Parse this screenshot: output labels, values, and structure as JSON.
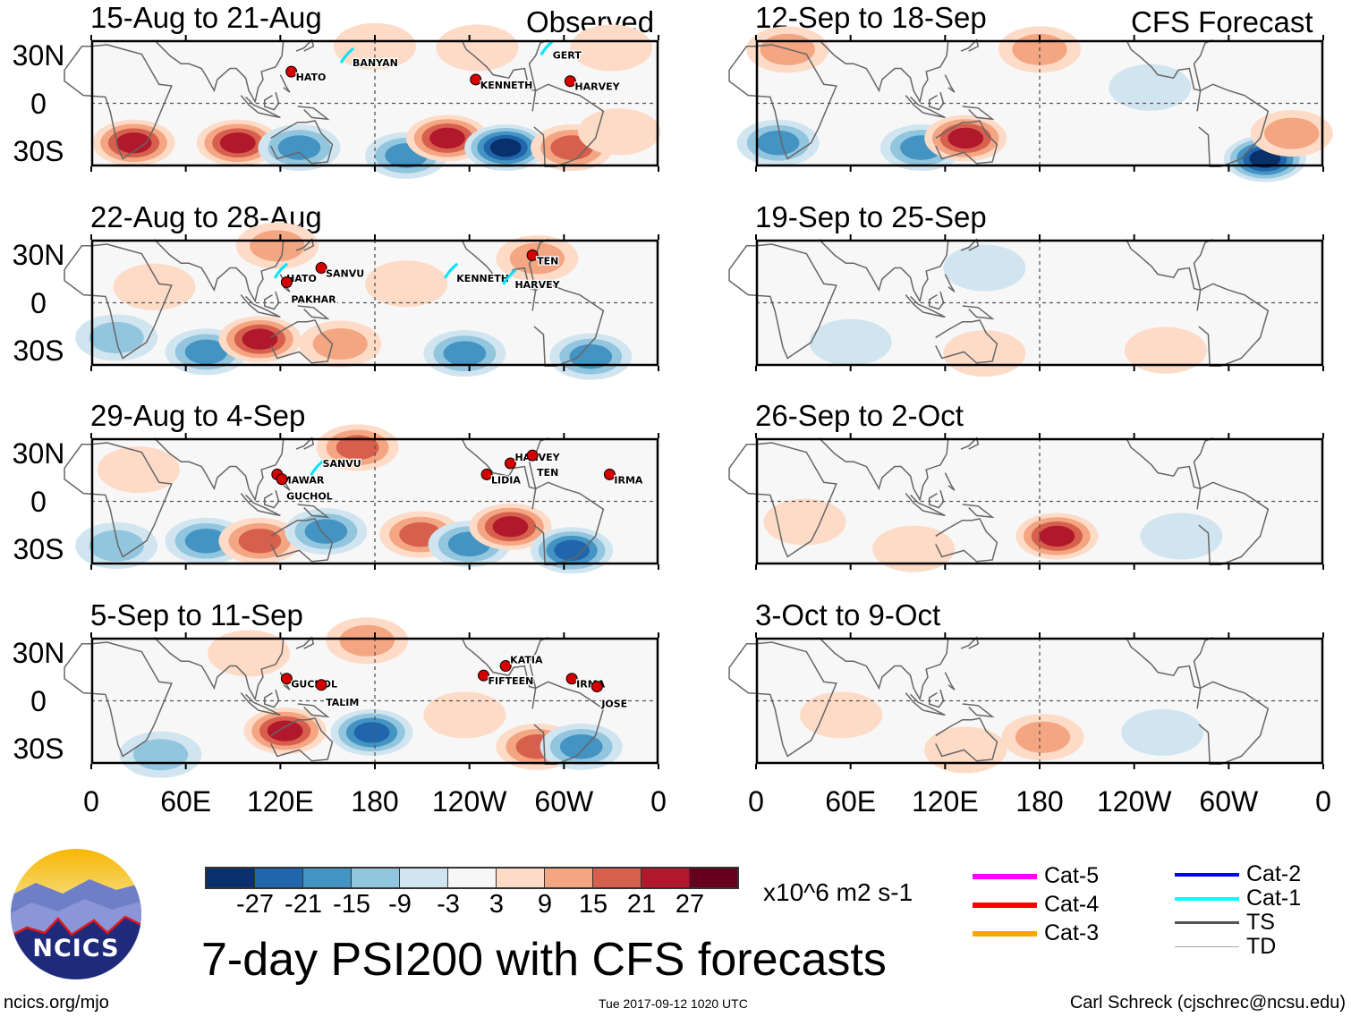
{
  "header": {
    "observed_label": "Observed",
    "forecast_label": "CFS Forecast"
  },
  "panels": [
    {
      "title": "15-Aug to 21-Aug",
      "col": 0,
      "row": 0,
      "anomalies": [
        [
          27,
          -25,
          24
        ],
        [
          93,
          -25,
          24
        ],
        [
          132,
          -28,
          -18
        ],
        [
          200,
          -33,
          -20
        ],
        [
          226,
          -22,
          24
        ],
        [
          263,
          -28,
          -27
        ],
        [
          305,
          -28,
          18
        ],
        [
          335,
          -18,
          9
        ],
        [
          245,
          35,
          6
        ],
        [
          180,
          36,
          6
        ],
        [
          330,
          35,
          4
        ]
      ],
      "storms": [
        {
          "name": "HATO",
          "lon": 127,
          "lat": 20
        },
        {
          "name": "BANYAN",
          "lon": 163,
          "lat": 29,
          "track": true
        },
        {
          "name": "KENNETH",
          "lon": 244,
          "lat": 15
        },
        {
          "name": "GERT",
          "lon": 290,
          "lat": 34,
          "track": true
        },
        {
          "name": "HARVEY",
          "lon": 304,
          "lat": 14
        }
      ]
    },
    {
      "title": "22-Aug to 28-Aug",
      "col": 0,
      "row": 1,
      "anomalies": [
        [
          16,
          -22,
          -12
        ],
        [
          73,
          -31,
          -18
        ],
        [
          107,
          -23,
          22
        ],
        [
          158,
          -26,
          10
        ],
        [
          237,
          -32,
          -16
        ],
        [
          317,
          -34,
          -20
        ],
        [
          118,
          36,
          14
        ],
        [
          283,
          28,
          10
        ],
        [
          40,
          10,
          6
        ],
        [
          200,
          12,
          4
        ]
      ],
      "storms": [
        {
          "name": "HATO",
          "lon": 121,
          "lat": 19,
          "track": true
        },
        {
          "name": "PAKHAR",
          "lon": 124,
          "lat": 13
        },
        {
          "name": "SANVU",
          "lon": 146,
          "lat": 22
        },
        {
          "name": "KENNETH",
          "lon": 229,
          "lat": 19,
          "track": true
        },
        {
          "name": "TEN",
          "lon": 280,
          "lat": 30
        },
        {
          "name": "HARVEY",
          "lon": 266,
          "lat": 15,
          "track": true
        }
      ]
    },
    {
      "title": "29-Aug to 4-Sep",
      "col": 0,
      "row": 2,
      "anomalies": [
        [
          16,
          -28,
          -14
        ],
        [
          73,
          -25,
          -20
        ],
        [
          107,
          -25,
          20
        ],
        [
          149,
          -19,
          -20
        ],
        [
          209,
          -21,
          20
        ],
        [
          240,
          -27,
          -20
        ],
        [
          266,
          -16,
          24
        ],
        [
          305,
          -31,
          -24
        ],
        [
          169,
          34,
          16
        ],
        [
          30,
          20,
          8
        ]
      ],
      "storms": [
        {
          "name": "MAWAR",
          "lon": 118,
          "lat": 17
        },
        {
          "name": "GUCHOL",
          "lon": 121,
          "lat": 14
        },
        {
          "name": "SANVU",
          "lon": 144,
          "lat": 20,
          "track": true
        },
        {
          "name": "LIDIA",
          "lon": 251,
          "lat": 17
        },
        {
          "name": "HARVEY",
          "lon": 266,
          "lat": 24
        },
        {
          "name": "TEN",
          "lon": 280,
          "lat": 29
        },
        {
          "name": "IRMA",
          "lon": 329,
          "lat": 17
        }
      ]
    },
    {
      "title": "5-Sep to 11-Sep",
      "col": 0,
      "row": 3,
      "anomalies": [
        [
          123,
          -19,
          24
        ],
        [
          178,
          -20,
          -22
        ],
        [
          283,
          -29,
          20
        ],
        [
          311,
          -29,
          -16
        ],
        [
          237,
          -9,
          8
        ],
        [
          44,
          -34,
          -12
        ],
        [
          100,
          30,
          8
        ],
        [
          175,
          38,
          10
        ]
      ],
      "storms": [
        {
          "name": "GUCHOL",
          "lon": 124,
          "lat": 14
        },
        {
          "name": "TALIM",
          "lon": 146,
          "lat": 10
        },
        {
          "name": "FIFTEEN",
          "lon": 249,
          "lat": 16
        },
        {
          "name": "KATIA",
          "lon": 263,
          "lat": 22
        },
        {
          "name": "IRMA",
          "lon": 305,
          "lat": 14
        },
        {
          "name": "JOSE",
          "lon": 321,
          "lat": 9
        }
      ]
    },
    {
      "title": "12-Sep to 18-Sep",
      "col": 1,
      "row": 0,
      "anomalies": [
        [
          14,
          -25,
          -20
        ],
        [
          105,
          -28,
          -20
        ],
        [
          133,
          -22,
          24
        ],
        [
          323,
          -35,
          -27
        ],
        [
          340,
          -19,
          14
        ],
        [
          20,
          34,
          12
        ],
        [
          180,
          34,
          10
        ],
        [
          250,
          10,
          -6
        ]
      ],
      "storms": []
    },
    {
      "title": "19-Sep to 25-Sep",
      "col": 1,
      "row": 1,
      "anomalies": [
        [
          145,
          22,
          -6
        ],
        [
          145,
          -32,
          6
        ],
        [
          260,
          -30,
          6
        ],
        [
          60,
          -25,
          -5
        ]
      ],
      "storms": []
    },
    {
      "title": "26-Sep to 2-Oct",
      "col": 1,
      "row": 2,
      "anomalies": [
        [
          191,
          -22,
          24
        ],
        [
          31,
          -13,
          8
        ],
        [
          270,
          -22,
          -6
        ],
        [
          100,
          -30,
          6
        ]
      ],
      "storms": []
    },
    {
      "title": "3-Oct to 9-Oct",
      "col": 1,
      "row": 3,
      "anomalies": [
        [
          182,
          -23,
          14
        ],
        [
          133,
          -31,
          8
        ],
        [
          54,
          -9,
          6
        ],
        [
          258,
          -20,
          -6
        ]
      ],
      "storms": []
    }
  ],
  "lat_labels": [
    "30N",
    "0",
    "30S"
  ],
  "lon_labels": [
    "0",
    "60E",
    "120E",
    "180",
    "120W",
    "60W",
    "0"
  ],
  "colorbar": {
    "colors": [
      "#08306b",
      "#2166ac",
      "#4393c3",
      "#92c5de",
      "#d1e5f0",
      "#f7f7f7",
      "#fddbc7",
      "#f4a582",
      "#d6604d",
      "#b2182b",
      "#67001f"
    ],
    "labels": [
      "-27",
      "-21",
      "-15",
      "-9",
      "-3",
      "3",
      "9",
      "15",
      "21",
      "27"
    ],
    "units": "x10^6 m2 s-1"
  },
  "legend": [
    {
      "label": "Cat-5",
      "color": "#ff00ff"
    },
    {
      "label": "Cat-4",
      "color": "#ff0000"
    },
    {
      "label": "Cat-3",
      "color": "#ffa500"
    },
    {
      "label": "Cat-2",
      "color": "#0000ff"
    },
    {
      "label": "Cat-1",
      "color": "#00ffff"
    },
    {
      "label": "TS",
      "color": "#555555"
    },
    {
      "label": "TD",
      "color": "#aaaaaa"
    }
  ],
  "footer": {
    "title": "7-day PSI200 with CFS forecasts",
    "url": "ncics.org/mjo",
    "timestamp": "Tue 2017-09-12 1020 UTC",
    "credit": "Carl Schreck (cjschrec@ncsu.edu)",
    "logo_text": "NCICS"
  }
}
